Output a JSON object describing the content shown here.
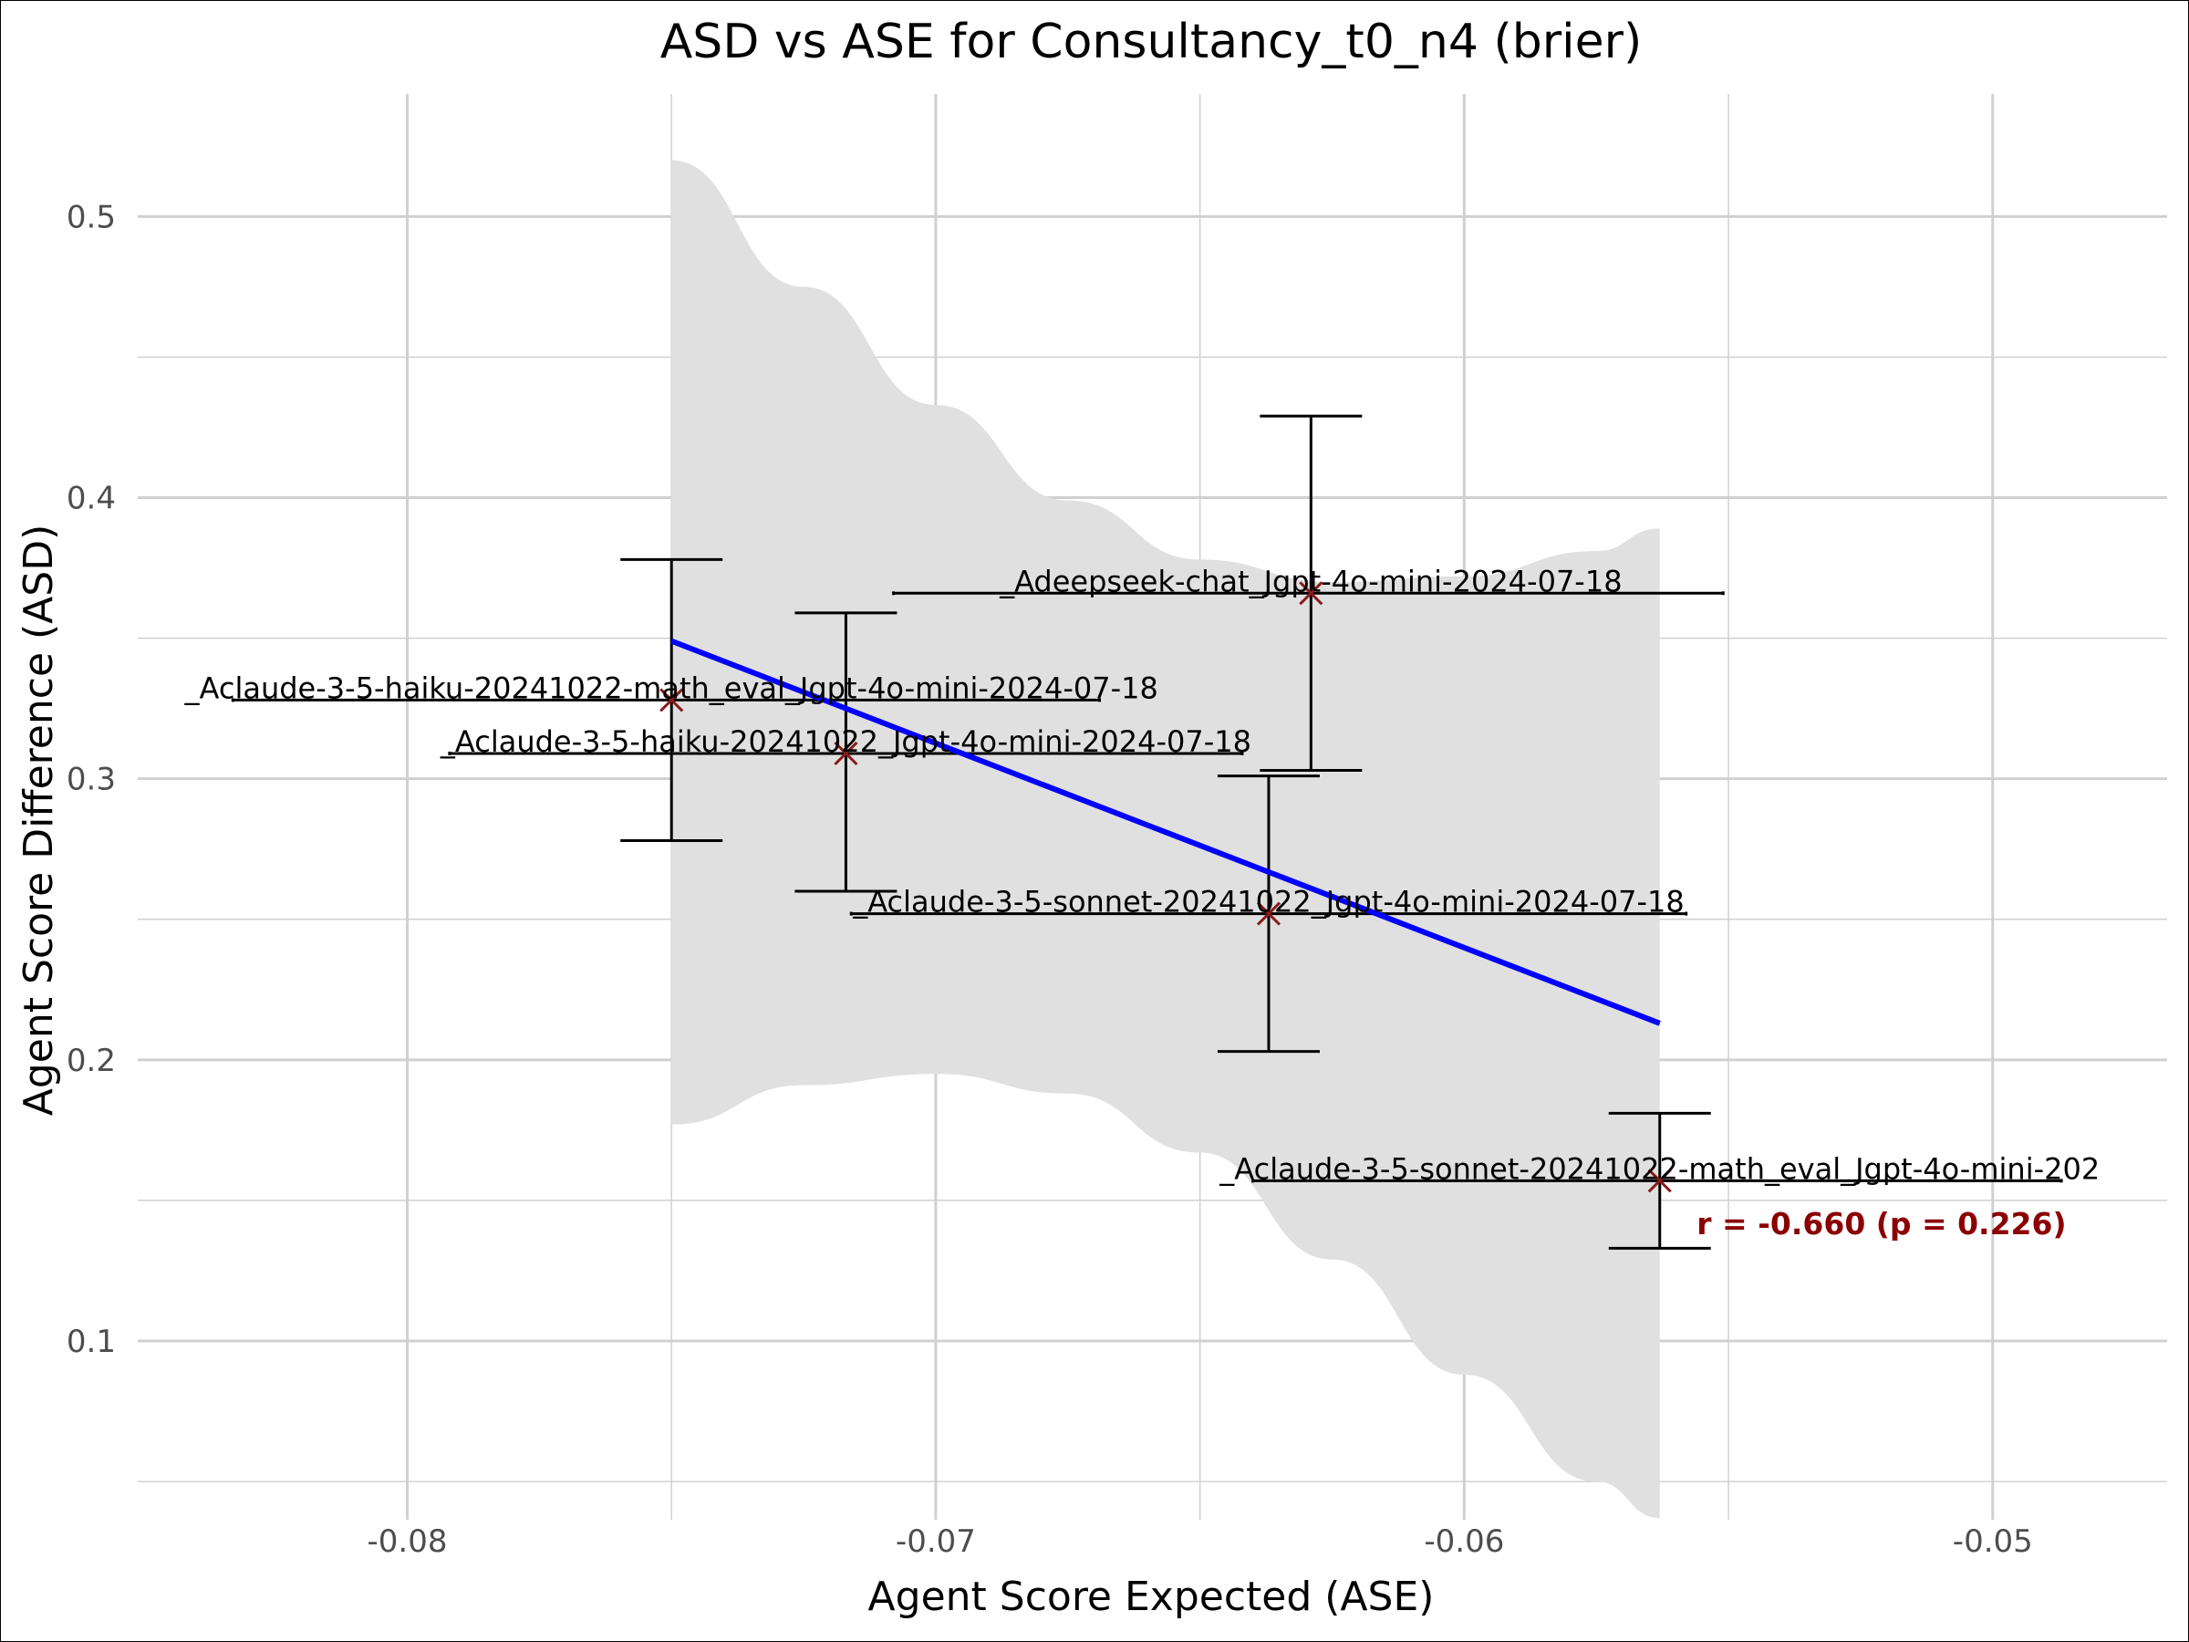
{
  "chart_data": {
    "type": "scatter",
    "title": "ASD vs ASE for Consultancy_t0_n4 (brier)",
    "xlabel": "Agent Score Expected (ASE)",
    "ylabel": "Agent Score Difference (ASD)",
    "xlim": [
      -0.0851,
      -0.0467
    ],
    "ylim": [
      0.0364,
      0.5436
    ],
    "x_ticks": [
      {
        "value": -0.08,
        "label": "-0.08"
      },
      {
        "value": -0.07,
        "label": "-0.07"
      },
      {
        "value": -0.06,
        "label": "-0.06"
      },
      {
        "value": -0.05,
        "label": "-0.05"
      }
    ],
    "y_ticks": [
      {
        "value": 0.1,
        "label": "0.1"
      },
      {
        "value": 0.2,
        "label": "0.2"
      },
      {
        "value": 0.3,
        "label": "0.3"
      },
      {
        "value": 0.4,
        "label": "0.4"
      },
      {
        "value": 0.5,
        "label": "0.5"
      }
    ],
    "x_minor_ticks": [
      -0.075,
      -0.065,
      -0.055
    ],
    "y_minor_ticks": [
      0.05,
      0.15,
      0.25,
      0.35,
      0.45
    ],
    "grid": true,
    "points": [
      {
        "label": "_Aclaude-3-5-haiku-20241022-math_eval_Jgpt-4o-mini-2024-07-18",
        "x": -0.075,
        "y": 0.328,
        "x_err_low": -0.0833,
        "x_err_high": -0.0669,
        "y_err_low": 0.278,
        "y_err_high": 0.378
      },
      {
        "label": "_Aclaude-3-5-haiku-20241022_Jgpt-4o-mini-2024-07-18",
        "x": -0.0717,
        "y": 0.309,
        "x_err_low": -0.0792,
        "x_err_high": -0.0642,
        "y_err_low": 0.26,
        "y_err_high": 0.359
      },
      {
        "label": "_Adeepseek-chat_Jgpt-4o-mini-2024-07-18",
        "x": -0.0629,
        "y": 0.366,
        "x_err_low": -0.0708,
        "x_err_high": -0.0551,
        "y_err_low": 0.303,
        "y_err_high": 0.429
      },
      {
        "label": "_Aclaude-3-5-sonnet-20241022_Jgpt-4o-mini-2024-07-18",
        "x": -0.0637,
        "y": 0.252,
        "x_err_low": -0.0716,
        "x_err_high": -0.0558,
        "y_err_low": 0.203,
        "y_err_high": 0.301
      },
      {
        "label": "_Aclaude-3-5-sonnet-20241022-math_eval_Jgpt-4o-mini-202",
        "x": -0.0563,
        "y": 0.157,
        "x_err_low": -0.064,
        "x_err_high": -0.0487,
        "y_err_low": 0.133,
        "y_err_high": 0.181
      }
    ],
    "regression": {
      "x_start": -0.075,
      "y_start": 0.349,
      "x_end": -0.0563,
      "y_end": 0.213
    },
    "confidence_band": {
      "upper": [
        [
          -0.075,
          0.52
        ],
        [
          -0.0725,
          0.475
        ],
        [
          -0.07,
          0.433
        ],
        [
          -0.0675,
          0.399
        ],
        [
          -0.065,
          0.378
        ],
        [
          -0.0625,
          0.37
        ],
        [
          -0.06,
          0.372
        ],
        [
          -0.0575,
          0.381
        ],
        [
          -0.0563,
          0.389
        ]
      ],
      "lower": [
        [
          -0.0563,
          0.037
        ],
        [
          -0.0575,
          0.05
        ],
        [
          -0.06,
          0.088
        ],
        [
          -0.0625,
          0.129
        ],
        [
          -0.065,
          0.167
        ],
        [
          -0.0675,
          0.188
        ],
        [
          -0.07,
          0.195
        ],
        [
          -0.0725,
          0.191
        ],
        [
          -0.075,
          0.177
        ]
      ]
    },
    "annotation": {
      "text": "r = -0.660 (p = 0.226)",
      "x": -0.0556,
      "y": 0.138
    },
    "colors": {
      "band": "#e0e0e0",
      "regression_line": "#0000ff",
      "marker": "#8b1a1a",
      "errorbar": "#000000",
      "annotation": "#8b0000",
      "grid": "#d0d0d0"
    }
  }
}
